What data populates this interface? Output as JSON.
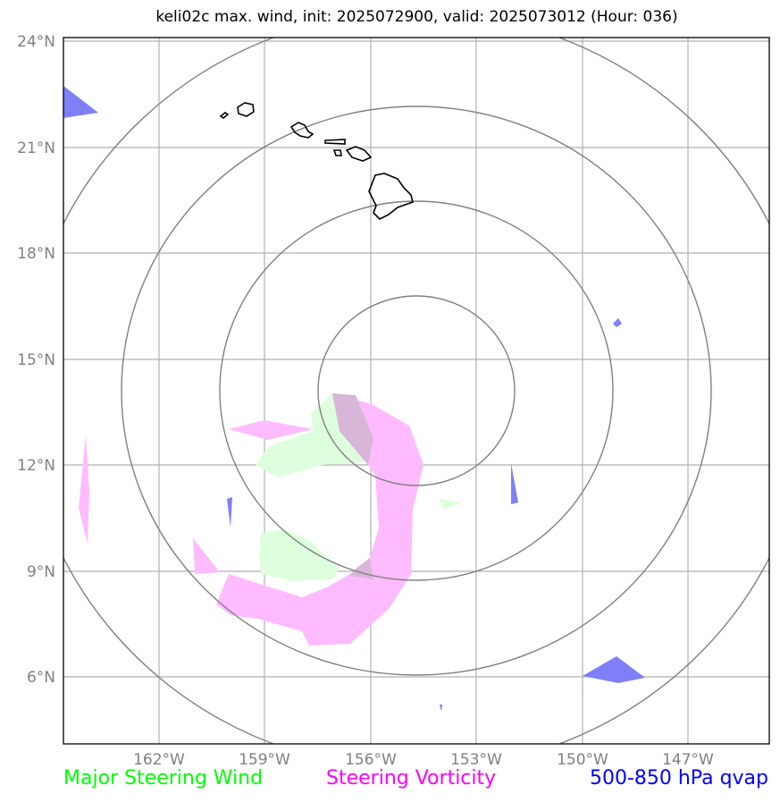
{
  "title": "keli02c max. wind, init: 2025072900, valid: 2025073012 (Hour: 036)",
  "map": {
    "lat_range": [
      4,
      24
    ],
    "lon_range": [
      -164.7,
      -144.7
    ],
    "lat_ticks": [
      {
        "value": 24,
        "label": "24°N"
      },
      {
        "value": 21,
        "label": "21°N"
      },
      {
        "value": 18,
        "label": "18°N"
      },
      {
        "value": 15,
        "label": "15°N"
      },
      {
        "value": 12,
        "label": "12°N"
      },
      {
        "value": 9,
        "label": "9°N"
      },
      {
        "value": 6,
        "label": "6°N"
      }
    ],
    "lon_ticks": [
      {
        "value": -162,
        "label": "162°W"
      },
      {
        "value": -159,
        "label": "159°W"
      },
      {
        "value": -156,
        "label": "156°W"
      },
      {
        "value": -153,
        "label": "153°W"
      },
      {
        "value": -150,
        "label": "150°W"
      },
      {
        "value": -147,
        "label": "147°W"
      }
    ],
    "range_ring_center": {
      "lat": 14.6,
      "lon": -155.0
    },
    "range_rings_count": 4,
    "gridlines": true
  },
  "legend": {
    "steering_wind": {
      "label": "Major Steering Wind",
      "color": "#00ff00"
    },
    "steering_vorticity": {
      "label": "Steering Vorticity",
      "color": "#ff00ff"
    },
    "qvap": {
      "label": "500-850 hPa qvap",
      "color": "#0000ff"
    }
  },
  "colors": {
    "wind_fill": "#ddffdd",
    "vorticity_fill": "#ffbbff",
    "overlap_fill": "#d8b6d8",
    "qvap_fill": "#7f7ff7",
    "ring": "#808080",
    "grid": "#b0b0b0",
    "coast": "#000000"
  }
}
